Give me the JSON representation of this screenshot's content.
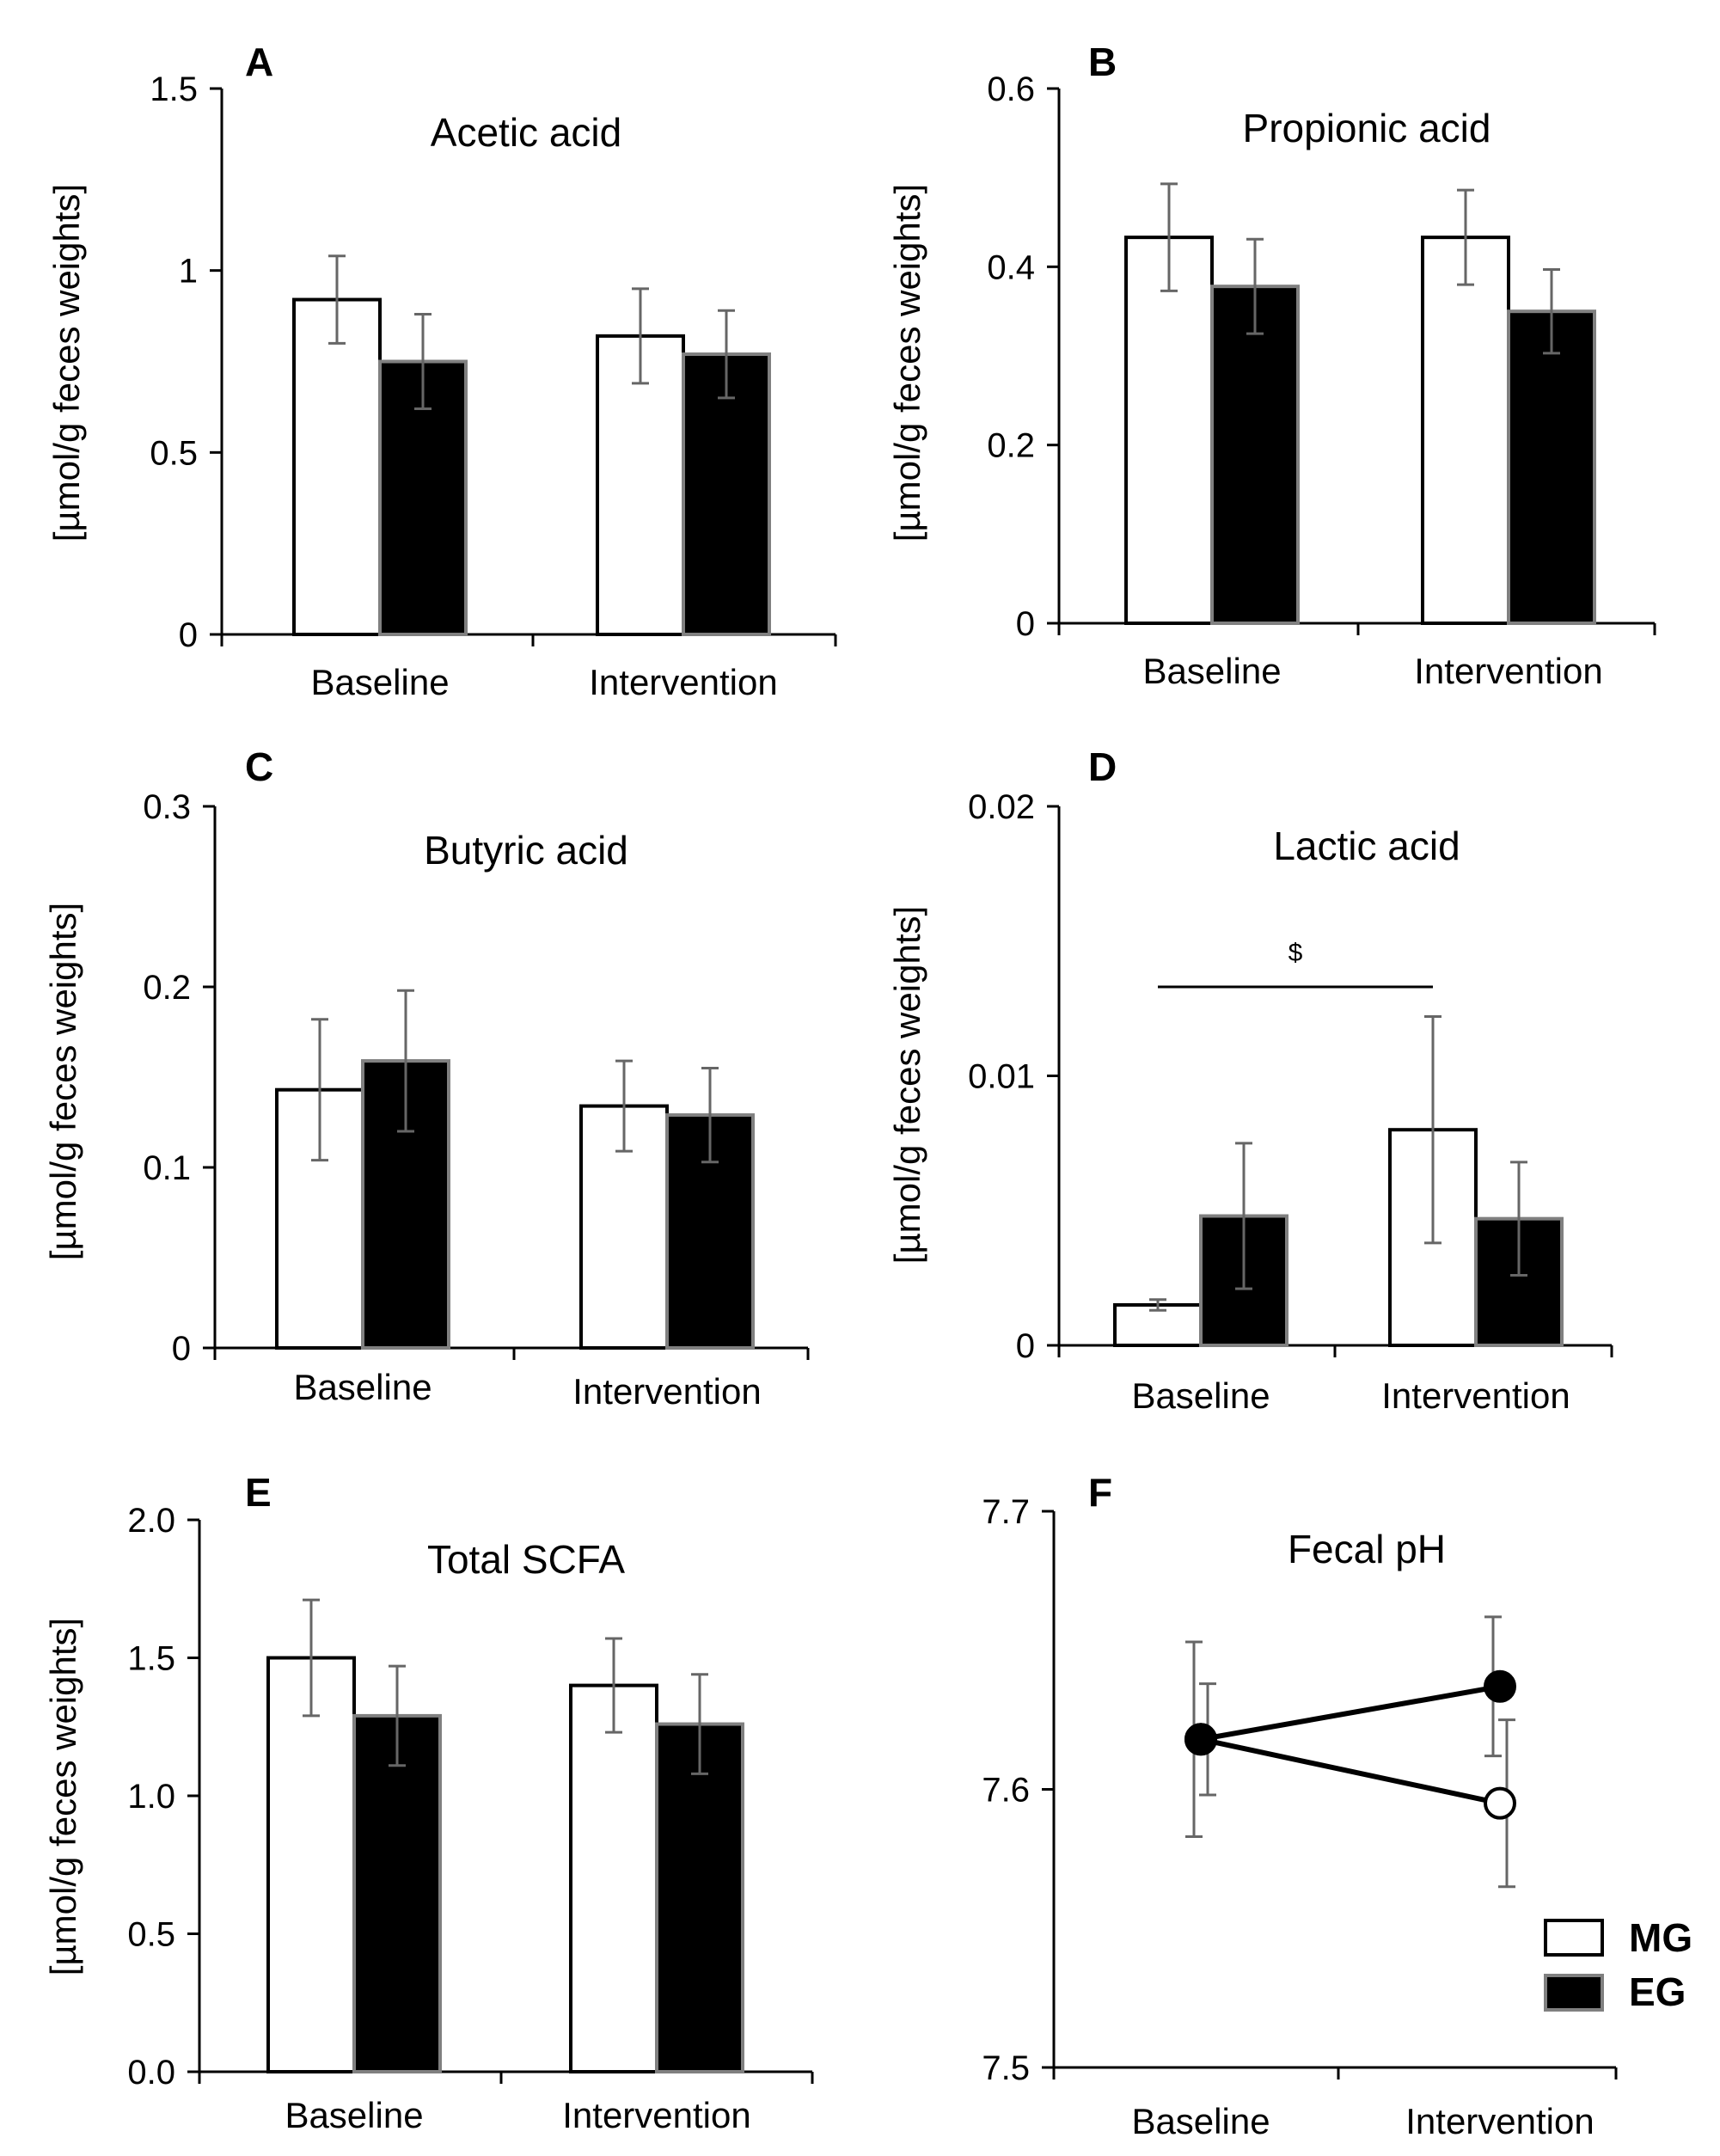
{
  "figure": {
    "legend": {
      "entries": [
        {
          "name": "MG",
          "fill": "#ffffff",
          "stroke": "#000000"
        },
        {
          "name": "EG",
          "fill": "#000000",
          "stroke": "#808080"
        }
      ]
    },
    "colors": {
      "mg": "#ffffff",
      "eg": "#000000",
      "axis": "#000000",
      "error_bar": "#666666",
      "eg_outline": "#808080"
    }
  },
  "chart_data": [
    {
      "panel": "A",
      "type": "bar",
      "title": "Acetic acid",
      "xlabel": "",
      "ylabel": "[µmol/g feces weights]",
      "categories": [
        "Baseline",
        "Intervention"
      ],
      "ylim": [
        0,
        1.5
      ],
      "ticks": [
        0,
        0.5,
        1,
        1.5
      ],
      "tick_labels": [
        "0",
        "0.5",
        "1",
        "1.5"
      ],
      "series": [
        {
          "name": "MG",
          "values": [
            0.92,
            0.82
          ],
          "errors": [
            0.12,
            0.13
          ]
        },
        {
          "name": "EG",
          "values": [
            0.75,
            0.77
          ],
          "errors": [
            0.13,
            0.12
          ]
        }
      ]
    },
    {
      "panel": "B",
      "type": "bar",
      "title": "Propionic acid",
      "xlabel": "",
      "ylabel": "[µmol/g feces weights]",
      "categories": [
        "Baseline",
        "Intervention"
      ],
      "ylim": [
        0,
        0.6
      ],
      "ticks": [
        0,
        0.2,
        0.4,
        0.6
      ],
      "tick_labels": [
        "0",
        "0.2",
        "0.4",
        "0.6"
      ],
      "series": [
        {
          "name": "MG",
          "values": [
            0.433,
            0.433
          ],
          "errors": [
            0.06,
            0.053
          ]
        },
        {
          "name": "EG",
          "values": [
            0.378,
            0.35
          ],
          "errors": [
            0.053,
            0.047
          ]
        }
      ]
    },
    {
      "panel": "C",
      "type": "bar",
      "title": "Butyric acid",
      "xlabel": "",
      "ylabel": "[µmol/g feces weights]",
      "categories": [
        "Baseline",
        "Intervention"
      ],
      "ylim": [
        0,
        0.3
      ],
      "ticks": [
        0,
        0.1,
        0.2,
        0.3
      ],
      "tick_labels": [
        "0",
        "0.1",
        "0.2",
        "0.3"
      ],
      "series": [
        {
          "name": "MG",
          "values": [
            0.143,
            0.134
          ],
          "errors": [
            0.039,
            0.025
          ]
        },
        {
          "name": "EG",
          "values": [
            0.159,
            0.129
          ],
          "errors": [
            0.039,
            0.026
          ]
        }
      ]
    },
    {
      "panel": "D",
      "type": "bar",
      "title": "Lactic acid",
      "xlabel": "",
      "ylabel": "[µmol/g feces weights]",
      "categories": [
        "Baseline",
        "Intervention"
      ],
      "ylim": [
        0,
        0.02
      ],
      "ticks": [
        0,
        0.01,
        0.02
      ],
      "tick_labels": [
        "0",
        "0.01",
        "0.02"
      ],
      "series": [
        {
          "name": "MG",
          "values": [
            0.0015,
            0.008
          ],
          "errors": [
            0.0002,
            0.0042
          ]
        },
        {
          "name": "EG",
          "values": [
            0.0048,
            0.0047
          ],
          "errors": [
            0.0027,
            0.0021
          ]
        }
      ],
      "annotation": {
        "label": "$",
        "from": "Baseline",
        "to": "Intervention",
        "y": 0.0133
      }
    },
    {
      "panel": "E",
      "type": "bar",
      "title": "Total SCFA",
      "xlabel": "",
      "ylabel": "[µmol/g feces weights]",
      "categories": [
        "Baseline",
        "Intervention"
      ],
      "ylim": [
        0,
        2.0
      ],
      "ticks": [
        0,
        0.5,
        1.0,
        1.5,
        2.0
      ],
      "tick_labels": [
        "0.0",
        "0.5",
        "1.0",
        "1.5",
        "2.0"
      ],
      "series": [
        {
          "name": "MG",
          "values": [
            1.5,
            1.4
          ],
          "errors": [
            0.21,
            0.17
          ]
        },
        {
          "name": "EG",
          "values": [
            1.29,
            1.26
          ],
          "errors": [
            0.18,
            0.18
          ]
        }
      ]
    },
    {
      "panel": "F",
      "type": "line",
      "title": "Fecal pH",
      "xlabel": "",
      "ylabel": "",
      "categories": [
        "Baseline",
        "Intervention"
      ],
      "ylim": [
        7.5,
        7.7
      ],
      "ticks": [
        7.5,
        7.6,
        7.7
      ],
      "tick_labels": [
        "7.5",
        "7.6",
        "7.7"
      ],
      "series": [
        {
          "name": "MG",
          "values": [
            7.618,
            7.595
          ],
          "errors": [
            0.02,
            0.03
          ]
        },
        {
          "name": "EG",
          "values": [
            7.618,
            7.637
          ],
          "errors": [
            0.035,
            0.025
          ]
        }
      ]
    }
  ]
}
